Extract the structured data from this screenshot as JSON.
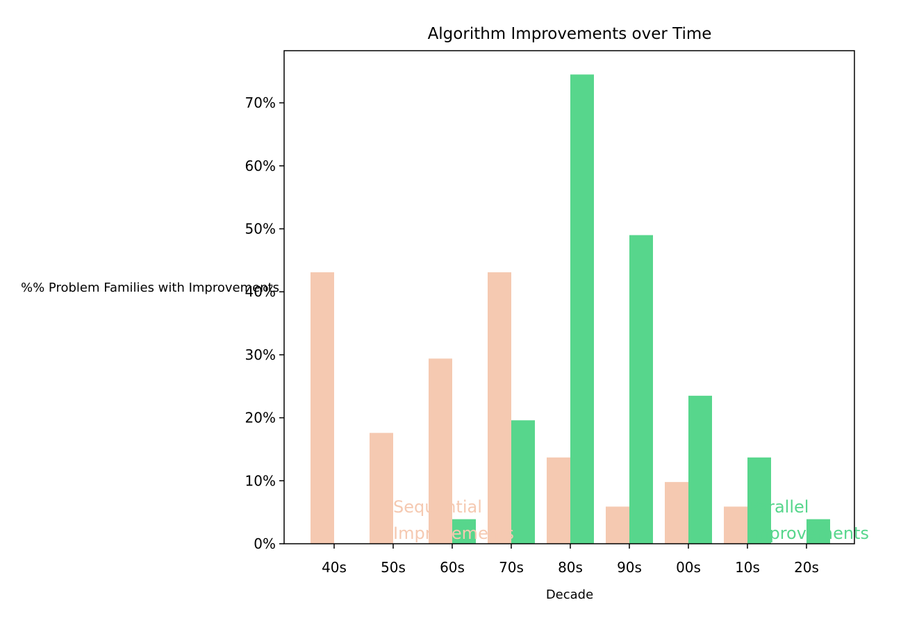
{
  "chart_data": {
    "type": "bar",
    "title": "Algorithm Improvements over Time",
    "xlabel": "Decade",
    "ylabel": "%% Problem Families with Improvements",
    "categories": [
      "40s",
      "50s",
      "60s",
      "70s",
      "80s",
      "90s",
      "00s",
      "10s",
      "20s"
    ],
    "ylim": [
      0,
      78
    ],
    "yticks": [
      0,
      10,
      20,
      30,
      40,
      50,
      60,
      70
    ],
    "ytick_labels": [
      "0%",
      "10%",
      "20%",
      "30%",
      "40%",
      "50%",
      "60%",
      "70%"
    ],
    "grid": false,
    "legend": "none",
    "series": [
      {
        "name": "Sequential Improvements",
        "color": "#f5c9b1",
        "values": [
          43.1,
          17.6,
          29.4,
          43.1,
          13.7,
          5.9,
          9.8,
          5.9,
          0
        ]
      },
      {
        "name": "Parallel Improvements",
        "color": "#57d68c",
        "values": [
          0,
          0,
          3.9,
          19.6,
          74.5,
          49.0,
          23.5,
          13.7,
          3.9
        ]
      }
    ],
    "annotations": [
      {
        "series": 0,
        "lines": [
          "Sequential",
          "Improvements"
        ]
      },
      {
        "series": 1,
        "lines": [
          "Parallel",
          "Improvements"
        ]
      }
    ]
  }
}
